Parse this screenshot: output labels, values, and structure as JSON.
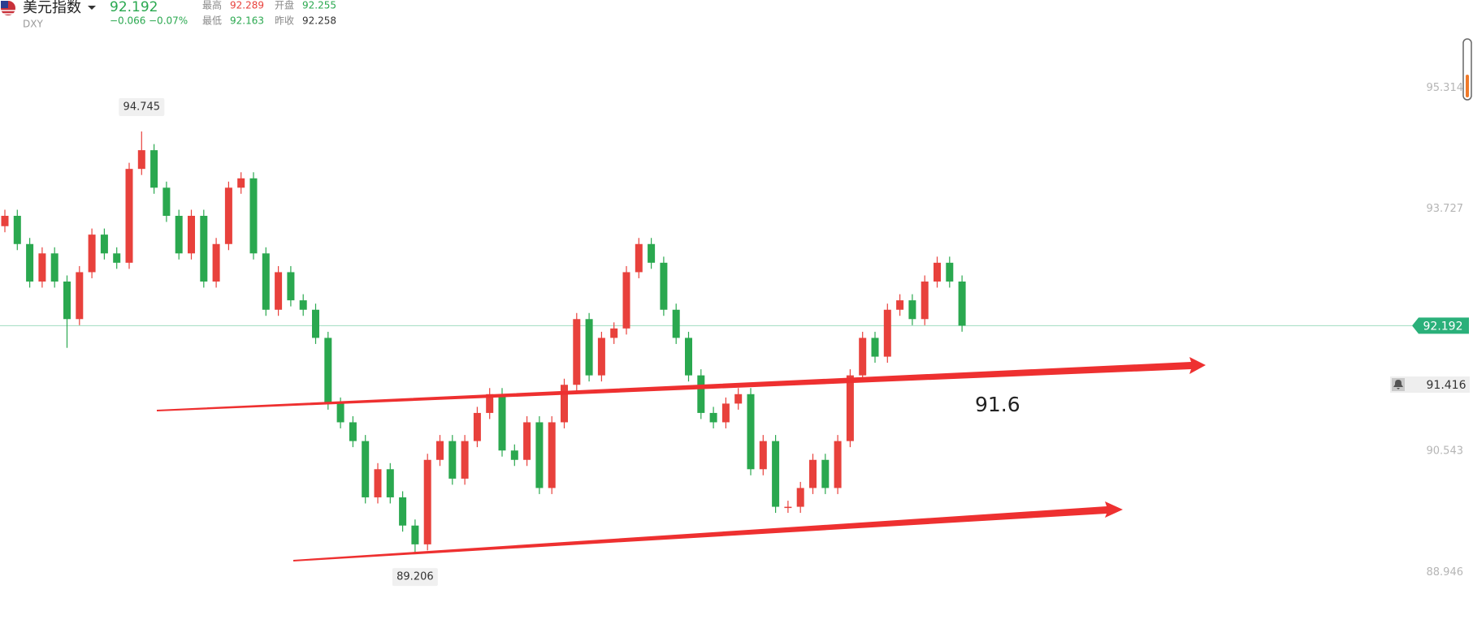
{
  "header": {
    "name": "美元指数",
    "symbol": "DXY",
    "price": "92.192",
    "change": "−0.066",
    "change_pct": "−0.07%",
    "stats": [
      {
        "label": "最高",
        "value": "92.289"
      },
      {
        "label": "开盘",
        "value": "92.255"
      },
      {
        "label": "最低",
        "value": "92.163"
      },
      {
        "label": "昨收",
        "value": "92.258"
      }
    ]
  },
  "chart_data": {
    "type": "candlestick",
    "open": [
      93.5,
      93.636,
      93.265,
      92.772,
      93.142,
      92.772,
      92.278,
      92.895,
      93.389,
      93.142,
      93.019,
      94.253,
      94.499,
      94.006,
      93.636,
      93.142,
      93.636,
      92.772,
      93.265,
      94.006,
      94.129,
      93.142,
      92.401,
      92.895,
      92.525,
      92.401,
      92.031,
      91.167,
      90.921,
      90.674,
      89.934,
      90.304,
      89.934,
      89.563,
      89.316,
      90.427,
      90.674,
      90.18,
      90.674,
      91.044,
      91.291,
      90.55,
      90.427,
      90.921,
      90.057,
      90.921,
      91.414,
      92.278,
      91.538,
      92.031,
      92.155,
      92.895,
      93.265,
      93.019,
      92.401,
      92.031,
      91.538,
      91.044,
      90.921,
      91.167,
      91.291,
      90.304,
      90.674,
      89.81,
      89.81,
      90.057,
      90.427,
      90.057,
      90.674,
      91.538,
      92.031,
      91.784,
      92.401,
      92.525,
      92.278,
      92.772,
      93.019,
      92.772
    ],
    "high": [
      93.716,
      93.716,
      93.345,
      93.222,
      93.222,
      92.852,
      92.975,
      93.469,
      93.469,
      93.222,
      94.333,
      94.745,
      94.579,
      94.086,
      93.716,
      93.716,
      93.716,
      93.345,
      94.086,
      94.209,
      94.209,
      93.222,
      92.975,
      92.975,
      92.605,
      92.481,
      92.111,
      91.247,
      91.001,
      90.754,
      90.384,
      90.384,
      90.014,
      89.643,
      90.507,
      90.754,
      90.754,
      90.754,
      91.124,
      91.371,
      91.371,
      90.63,
      91.001,
      91.001,
      91.001,
      91.494,
      92.358,
      92.358,
      92.111,
      92.235,
      92.975,
      93.345,
      93.345,
      93.099,
      92.481,
      92.111,
      91.618,
      91.124,
      91.247,
      91.371,
      91.371,
      90.754,
      90.754,
      89.89,
      90.137,
      90.507,
      90.507,
      90.754,
      91.618,
      92.111,
      92.111,
      92.481,
      92.605,
      92.605,
      92.852,
      93.099,
      93.099,
      92.852
    ],
    "low": [
      93.42,
      93.185,
      92.692,
      92.692,
      92.692,
      91.9,
      92.198,
      92.815,
      93.062,
      92.939,
      92.939,
      94.173,
      93.926,
      93.556,
      93.062,
      93.062,
      92.692,
      92.692,
      93.185,
      93.926,
      93.062,
      92.321,
      92.321,
      92.445,
      92.321,
      91.951,
      91.087,
      90.841,
      90.594,
      89.854,
      89.854,
      89.854,
      89.483,
      89.206,
      89.236,
      90.347,
      90.1,
      90.1,
      90.594,
      90.964,
      90.47,
      90.347,
      90.347,
      89.977,
      89.977,
      90.841,
      91.334,
      91.458,
      91.458,
      91.951,
      92.075,
      92.815,
      92.939,
      92.321,
      91.951,
      91.458,
      90.964,
      90.841,
      90.841,
      91.087,
      90.224,
      90.224,
      89.73,
      89.73,
      89.73,
      89.977,
      89.977,
      89.977,
      90.594,
      91.458,
      91.704,
      91.704,
      92.321,
      92.198,
      92.198,
      92.692,
      92.692,
      92.112
    ],
    "close": [
      93.636,
      93.265,
      92.772,
      93.142,
      92.772,
      92.278,
      92.895,
      93.389,
      93.142,
      93.019,
      94.253,
      94.499,
      94.006,
      93.636,
      93.142,
      93.636,
      92.772,
      93.265,
      94.006,
      94.129,
      93.142,
      92.401,
      92.895,
      92.525,
      92.401,
      92.031,
      91.167,
      90.921,
      90.674,
      89.934,
      90.304,
      89.934,
      89.563,
      89.316,
      90.427,
      90.674,
      90.18,
      90.674,
      91.044,
      91.291,
      90.55,
      90.427,
      90.921,
      90.057,
      90.921,
      91.414,
      92.278,
      91.538,
      92.031,
      92.155,
      92.895,
      93.265,
      93.019,
      92.401,
      92.031,
      91.538,
      91.044,
      90.921,
      91.167,
      91.291,
      90.304,
      90.674,
      89.81,
      89.81,
      90.057,
      90.427,
      90.057,
      90.674,
      91.538,
      92.031,
      91.784,
      92.401,
      92.525,
      92.278,
      92.772,
      93.019,
      92.772,
      92.192
    ],
    "up_color": "#e8413c",
    "down_color": "#2aa84f",
    "ylim": [
      88.045,
      96.474
    ],
    "yticks": [
      95.314,
      93.727,
      90.543,
      88.946
    ],
    "grid": false,
    "max_label": 94.745,
    "min_label": 89.206,
    "last_price": 92.192,
    "alert_price": 91.416,
    "annotation": "91.6"
  }
}
